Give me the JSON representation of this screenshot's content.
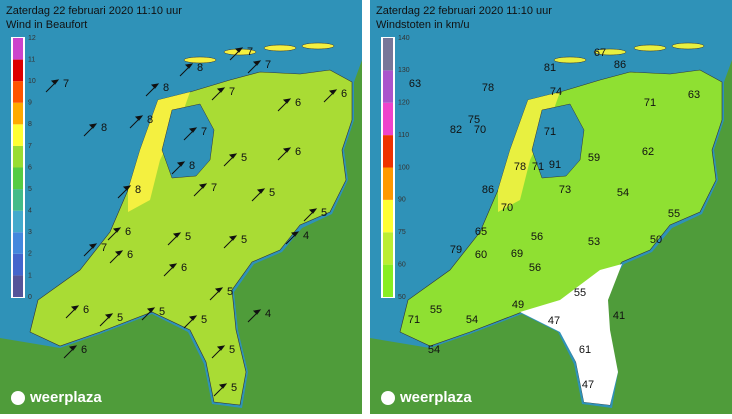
{
  "panels": [
    {
      "title": "Zaterdag 22 februari 2020 11:10 uur",
      "subtitle": "Wind in Beaufort",
      "legend": {
        "ticks": [
          0,
          1,
          2,
          3,
          4,
          5,
          6,
          7,
          8,
          9,
          10,
          11,
          12
        ],
        "colors": [
          "#555599",
          "#4466cc",
          "#4488dd",
          "#44aacc",
          "#44bb88",
          "#55cc44",
          "#99dd33",
          "#ffff33",
          "#ffaa00",
          "#ff5500",
          "#dd0000",
          "#cc44cc"
        ]
      },
      "labels": [
        7,
        8,
        7,
        8,
        7,
        8,
        7,
        6,
        6,
        8,
        7,
        8,
        5,
        6,
        8,
        7,
        5,
        5,
        6,
        5,
        5,
        4,
        7,
        6,
        6,
        5,
        6,
        5,
        5,
        5,
        4,
        5,
        6,
        5
      ]
    },
    {
      "title": "Zaterdag 22 februari 2020 11:10 uur",
      "subtitle": "Windstoten in km/u",
      "legend": {
        "ticks": [
          50,
          60,
          75,
          90,
          100,
          110,
          120,
          130,
          140
        ],
        "colors": [
          "#88ee22",
          "#bbee33",
          "#ffff33",
          "#ff9900",
          "#ee3300",
          "#ee44cc",
          "#aa55cc",
          "#777799"
        ]
      },
      "labels": [
        63,
        82,
        67,
        81,
        86,
        78,
        74,
        71,
        63,
        75,
        70,
        71,
        78,
        71,
        91,
        59,
        62,
        73,
        86,
        54,
        70,
        55,
        65,
        56,
        53,
        50,
        79,
        60,
        69,
        56,
        55,
        49,
        55,
        54,
        47,
        41,
        71,
        54,
        61,
        47
      ]
    }
  ],
  "logo": "weerplaza"
}
